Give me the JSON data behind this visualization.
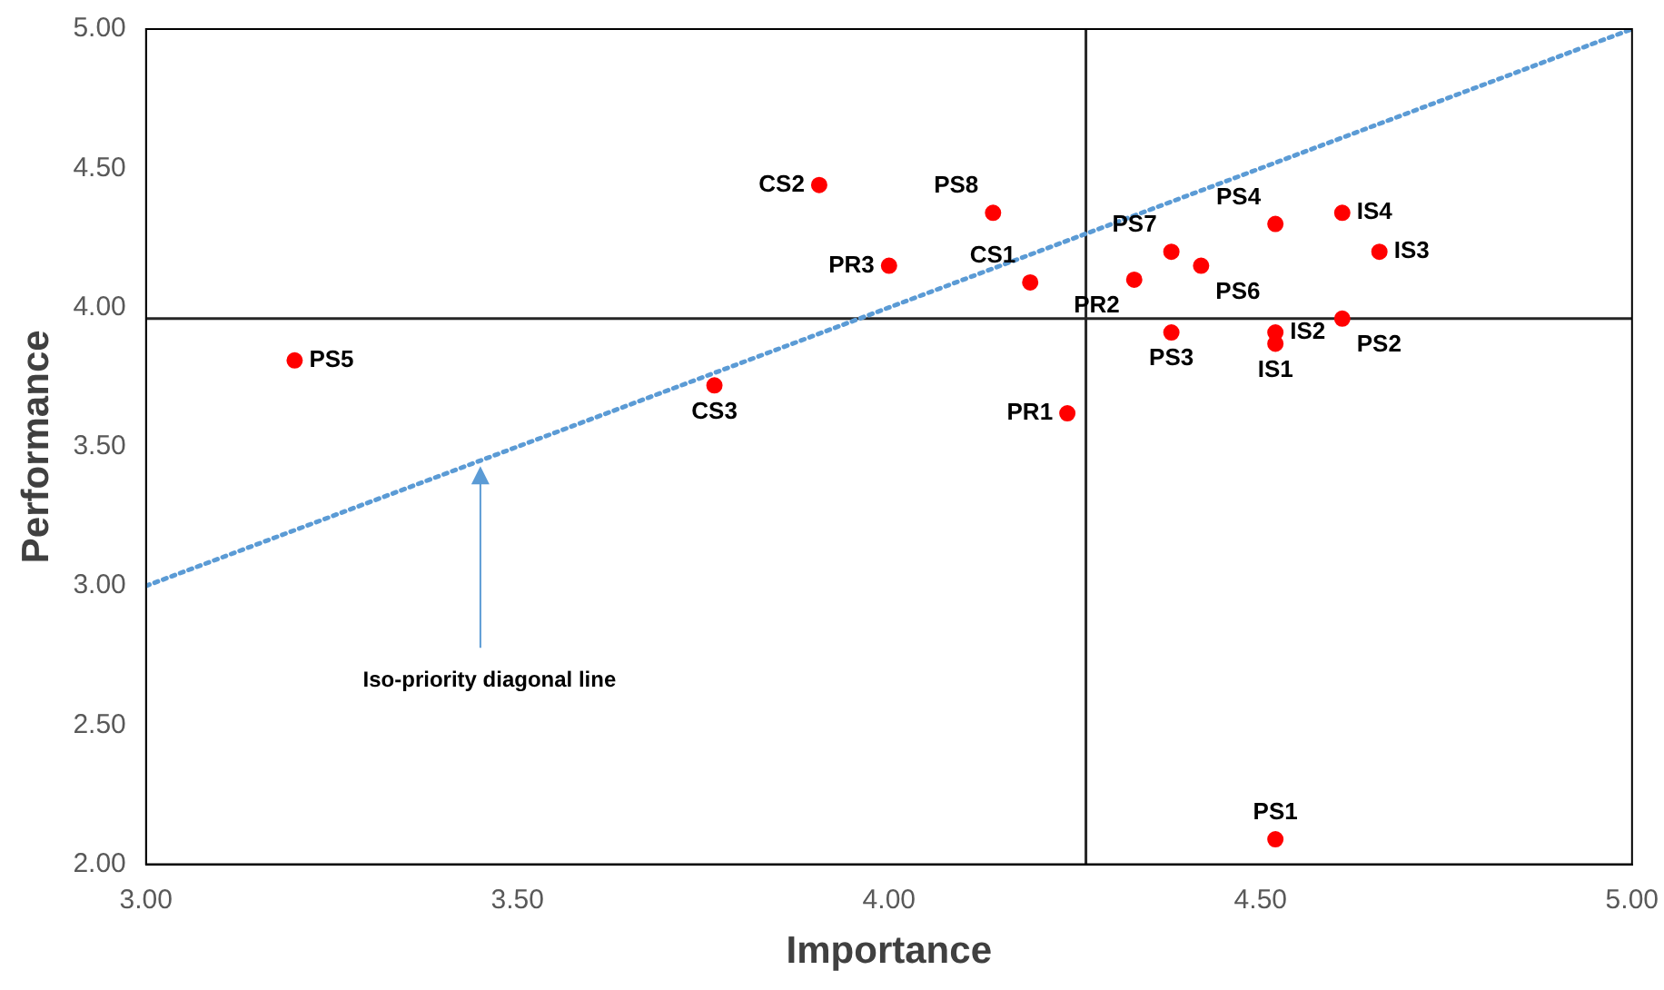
{
  "chart_data": {
    "type": "scatter",
    "xlabel": "Importance",
    "ylabel": "Performance",
    "xlim": [
      3,
      5
    ],
    "ylim": [
      2,
      5
    ],
    "xticks": [
      {
        "value": 3,
        "label": "3.00"
      },
      {
        "value": 3.5,
        "label": "3.50"
      },
      {
        "value": 4,
        "label": "4.00"
      },
      {
        "value": 4.5,
        "label": "4.50"
      },
      {
        "value": 5,
        "label": "5.00"
      }
    ],
    "yticks": [
      {
        "value": 2,
        "label": "2.00"
      },
      {
        "value": 2.5,
        "label": "2.50"
      },
      {
        "value": 3,
        "label": "3.00"
      },
      {
        "value": 3.5,
        "label": "3.50"
      },
      {
        "value": 4,
        "label": "4.00"
      },
      {
        "value": 4.5,
        "label": "4.50"
      },
      {
        "value": 5,
        "label": "5.00"
      }
    ],
    "grid": false,
    "legend": false,
    "marker": "circle",
    "series": [
      {
        "type": "line",
        "color": "#5b9bd5",
        "line_style": "dotted",
        "marker": "none",
        "x": [
          3,
          5
        ],
        "values": [
          3,
          5
        ]
      },
      {
        "name": "PS5",
        "color": "#ff0000",
        "x": [
          3.2
        ],
        "values": [
          3.81
        ]
      },
      {
        "name": "CS3",
        "color": "#ff0000",
        "x": [
          3.765
        ],
        "values": [
          3.72
        ]
      },
      {
        "name": "CS2",
        "color": "#ff0000",
        "x": [
          3.906
        ],
        "values": [
          4.44
        ]
      },
      {
        "name": "PR3",
        "color": "#ff0000",
        "x": [
          4.0
        ],
        "values": [
          4.15
        ]
      },
      {
        "name": "PS8",
        "color": "#ff0000",
        "x": [
          4.14
        ],
        "values": [
          4.34
        ]
      },
      {
        "name": "CS1",
        "color": "#ff0000",
        "x": [
          4.19
        ],
        "values": [
          4.09
        ]
      },
      {
        "name": "PR1",
        "color": "#ff0000",
        "x": [
          4.24
        ],
        "values": [
          3.62
        ]
      },
      {
        "name": "PR2",
        "color": "#ff0000",
        "x": [
          4.33
        ],
        "values": [
          4.1
        ]
      },
      {
        "name": "PS7",
        "color": "#ff0000",
        "x": [
          4.38
        ],
        "values": [
          4.2
        ]
      },
      {
        "name": "PS3",
        "color": "#ff0000",
        "x": [
          4.38
        ],
        "values": [
          3.91
        ]
      },
      {
        "name": "PS6",
        "color": "#ff0000",
        "x": [
          4.42
        ],
        "values": [
          4.15
        ]
      },
      {
        "name": "PS4",
        "color": "#ff0000",
        "x": [
          4.52
        ],
        "values": [
          4.3
        ]
      },
      {
        "name": "IS2",
        "color": "#ff0000",
        "x": [
          4.52
        ],
        "values": [
          3.91
        ]
      },
      {
        "name": "IS1",
        "color": "#ff0000",
        "x": [
          4.52
        ],
        "values": [
          3.87
        ]
      },
      {
        "name": "PS1",
        "color": "#ff0000",
        "x": [
          4.52
        ],
        "values": [
          2.09
        ]
      },
      {
        "name": "IS4",
        "color": "#ff0000",
        "x": [
          4.61
        ],
        "values": [
          4.34
        ]
      },
      {
        "name": "PS2",
        "color": "#ff0000",
        "x": [
          4.61
        ],
        "values": [
          3.96
        ]
      },
      {
        "name": "IS3",
        "color": "#ff0000",
        "x": [
          4.66
        ],
        "values": [
          4.2
        ]
      }
    ],
    "ref_lines": [
      {
        "axis": "x",
        "value": 4.265,
        "color": "#262626"
      },
      {
        "axis": "y",
        "value": 3.96,
        "color": "#262626"
      }
    ],
    "annotations": [
      {
        "text": "Iso-priority diagonal line",
        "x": 3.45,
        "y": 3.43
      }
    ]
  }
}
